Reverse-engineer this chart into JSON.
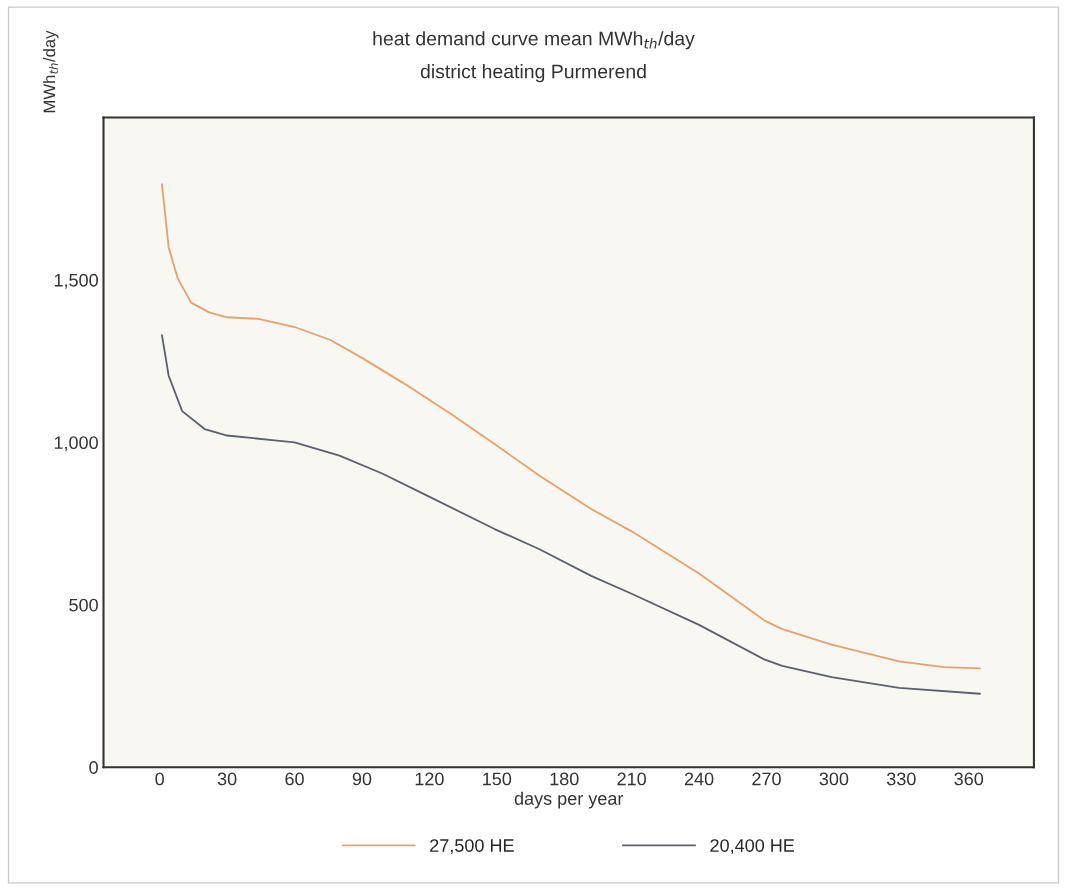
{
  "chart_data": {
    "type": "line",
    "title": "heat demand curve mean MWh$_{th}$/day",
    "subtitle": "district heating Purmerend",
    "xlabel": "days per year",
    "ylabel": "MWh$_{th}$/day",
    "xlim": [
      -25,
      389
    ],
    "ylim": [
      0,
      2000
    ],
    "xticks": [
      0,
      30,
      60,
      90,
      120,
      150,
      180,
      210,
      240,
      270,
      300,
      330,
      360
    ],
    "yticks": [
      0,
      500,
      {
        "value": 1000,
        "label": "1,000"
      },
      {
        "value": 1500,
        "label": "1,500"
      }
    ],
    "grid": false,
    "legend": "bottom",
    "marker": "none",
    "line_style": "solid",
    "series": [
      {
        "name": "27,500 HE",
        "color": "#e8a070",
        "x": [
          1,
          4,
          8,
          14,
          22,
          30,
          44,
          60,
          76,
          90,
          109,
          129,
          149,
          169,
          192,
          210,
          240,
          269,
          277,
          299,
          329,
          349,
          365
        ],
        "values": [
          1795,
          1600,
          1505,
          1430,
          1400,
          1385,
          1380,
          1355,
          1315,
          1260,
          1180,
          1090,
          995,
          897,
          795,
          726,
          596,
          452,
          425,
          377,
          326,
          308,
          304
        ]
      },
      {
        "name": "20,400 HE",
        "color": "#5a6070",
        "x": [
          1,
          4,
          10,
          20,
          30,
          50,
          60,
          80,
          99,
          119,
          149,
          169,
          192,
          210,
          240,
          269,
          277,
          299,
          329,
          365
        ],
        "values": [
          1330,
          1205,
          1096,
          1041,
          1021,
          1007,
          1000,
          959,
          904,
          836,
          733,
          671,
          589,
          534,
          438,
          332,
          312,
          277,
          244,
          226
        ]
      }
    ]
  }
}
